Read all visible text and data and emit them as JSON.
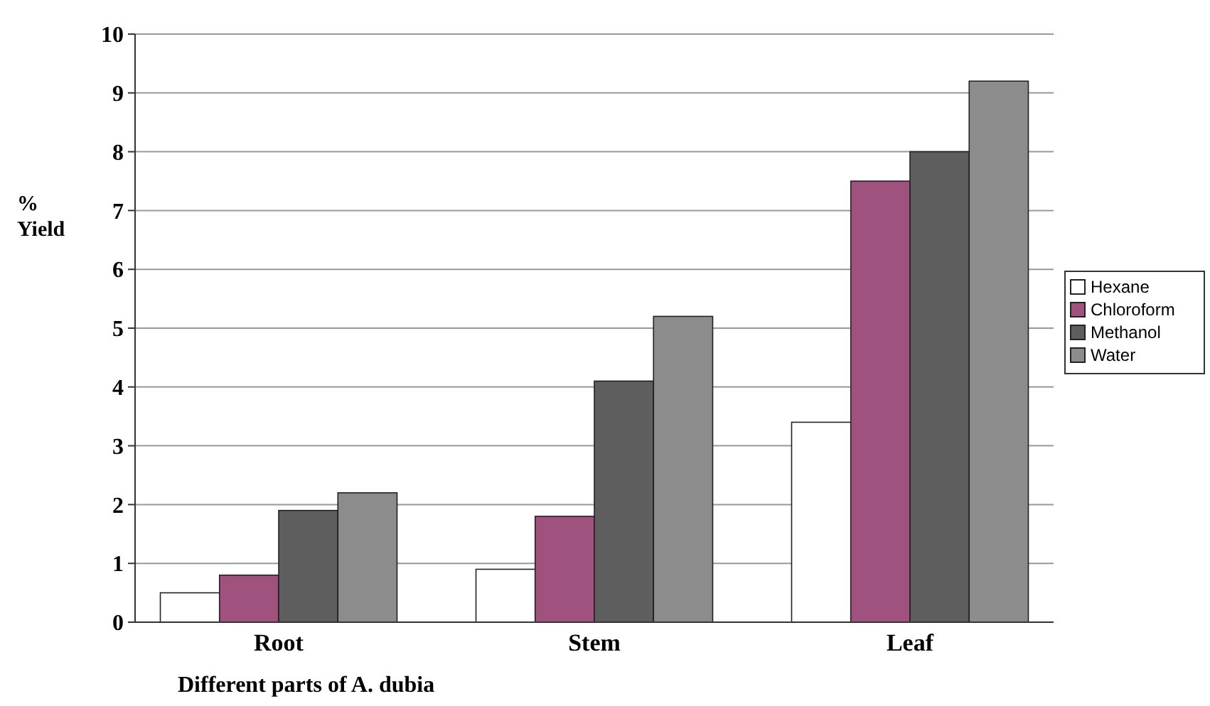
{
  "chart_data": {
    "type": "bar",
    "xlabel": "Different parts of A. dubia",
    "ylabel": "% Yield",
    "categories": [
      "Root",
      "Stem",
      "Leaf"
    ],
    "series": [
      {
        "name": "Hexane",
        "color": "#ffffff",
        "values": [
          0.5,
          0.9,
          3.4
        ]
      },
      {
        "name": "Chloroform",
        "color": "#a0527f",
        "values": [
          0.8,
          1.8,
          7.5
        ]
      },
      {
        "name": "Methanol",
        "color": "#5e5e5e",
        "values": [
          1.9,
          4.1,
          8.0
        ]
      },
      {
        "name": "Water",
        "color": "#8c8c8c",
        "values": [
          2.2,
          5.2,
          9.2
        ]
      }
    ],
    "ylim": [
      0,
      10
    ],
    "yticks": [
      0,
      1,
      2,
      3,
      4,
      5,
      6,
      7,
      8,
      9,
      10
    ],
    "grid": "y",
    "legend": "right"
  }
}
